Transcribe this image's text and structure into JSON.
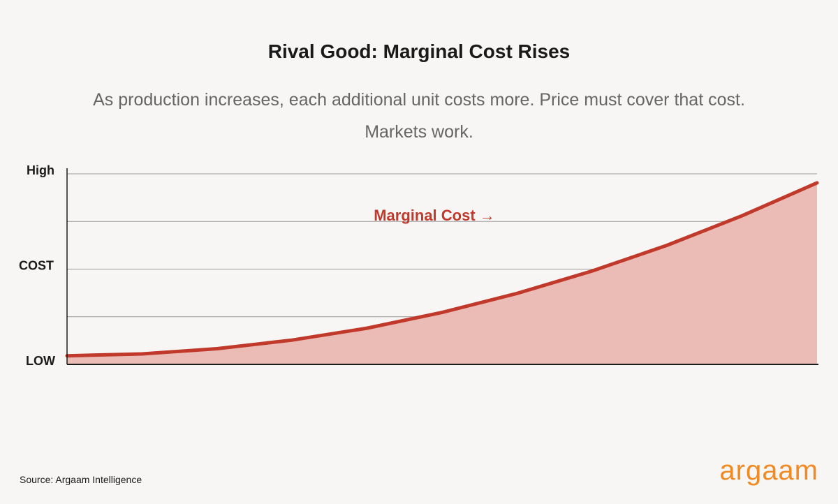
{
  "chart_data": {
    "type": "area",
    "title": "Rival Good: Marginal Cost Rises",
    "subtitle": "As production increases, each additional unit costs more. Price must cover that cost. Markets work.",
    "ylabel": "COST",
    "annotation": "Marginal Cost →",
    "source": "Source: Argaam Intelligence",
    "brand": "argaam",
    "x": [
      0,
      1,
      2,
      3,
      4,
      5,
      6,
      7,
      8,
      9,
      10
    ],
    "series": [
      {
        "name": "Marginal Cost",
        "color": "#c0392b",
        "fill": "#ebbcb6",
        "values": [
          0.18,
          0.22,
          0.33,
          0.51,
          0.76,
          1.09,
          1.49,
          1.96,
          2.5,
          3.12,
          3.81
        ]
      }
    ],
    "xlim": [
      0,
      10
    ],
    "ylim": [
      0,
      4
    ],
    "yticks": [
      {
        "value": 0,
        "label": "LOW"
      },
      {
        "value": 4,
        "label": "High"
      }
    ],
    "minor_yticks": [
      1,
      2,
      3
    ],
    "grid": true
  }
}
